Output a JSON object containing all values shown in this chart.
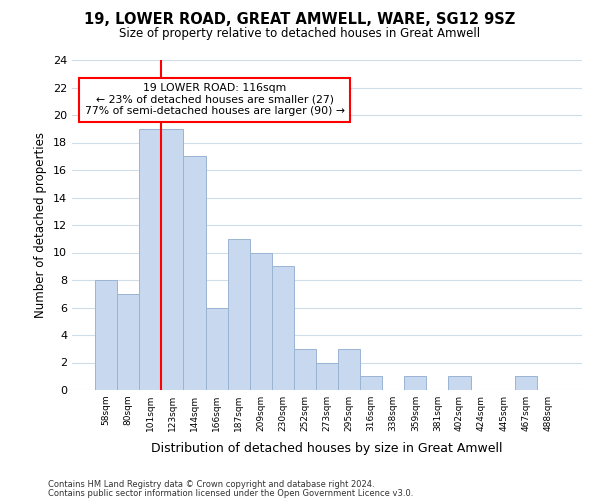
{
  "title": "19, LOWER ROAD, GREAT AMWELL, WARE, SG12 9SZ",
  "subtitle": "Size of property relative to detached houses in Great Amwell",
  "xlabel": "Distribution of detached houses by size in Great Amwell",
  "ylabel": "Number of detached properties",
  "bin_labels": [
    "58sqm",
    "80sqm",
    "101sqm",
    "123sqm",
    "144sqm",
    "166sqm",
    "187sqm",
    "209sqm",
    "230sqm",
    "252sqm",
    "273sqm",
    "295sqm",
    "316sqm",
    "338sqm",
    "359sqm",
    "381sqm",
    "402sqm",
    "424sqm",
    "445sqm",
    "467sqm",
    "488sqm"
  ],
  "bar_heights": [
    8,
    7,
    19,
    19,
    17,
    6,
    11,
    10,
    9,
    3,
    2,
    3,
    1,
    0,
    1,
    0,
    1,
    0,
    0,
    1,
    0
  ],
  "bar_color": "#c8d8ee",
  "bar_edge_color": "#9ab4d4",
  "vline_x": 2.5,
  "vline_color": "red",
  "annotation_line1": "19 LOWER ROAD: 116sqm",
  "annotation_line2": "← 23% of detached houses are smaller (27)",
  "annotation_line3": "77% of semi-detached houses are larger (90) →",
  "annotation_box_color": "white",
  "annotation_box_edge": "red",
  "ylim": [
    0,
    24
  ],
  "yticks": [
    0,
    2,
    4,
    6,
    8,
    10,
    12,
    14,
    16,
    18,
    20,
    22,
    24
  ],
  "footer_line1": "Contains HM Land Registry data © Crown copyright and database right 2024.",
  "footer_line2": "Contains public sector information licensed under the Open Government Licence v3.0.",
  "bg_color": "#ffffff",
  "plot_bg_color": "#ffffff",
  "grid_color": "#d0dce8"
}
